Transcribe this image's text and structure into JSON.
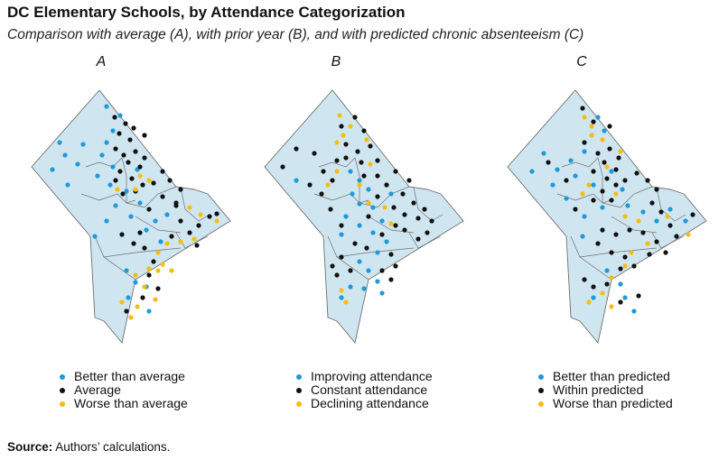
{
  "title": "DC Elementary Schools, by Attendance Categorization",
  "subtitle": "Comparison with average (A), with prior year (B), and with predicted chronic absenteeism (C)",
  "colors": {
    "blue": "#1f9ad6",
    "black": "#111111",
    "yellow": "#f7bd12",
    "fill": "#cfe6f1",
    "border": "#6f6f6f"
  },
  "panels": [
    {
      "label": "A",
      "legend": [
        "Better than average",
        "Average",
        "Worse than average"
      ]
    },
    {
      "label": "B",
      "legend": [
        "Improving attendance",
        "Constant attendance",
        "Declining attendance"
      ]
    },
    {
      "label": "C",
      "legend": [
        "Better than predicted",
        "Within predicted",
        "Worse than predicted"
      ]
    }
  ],
  "source_label": "Source:",
  "source_text": "Authors’ calculations."
}
